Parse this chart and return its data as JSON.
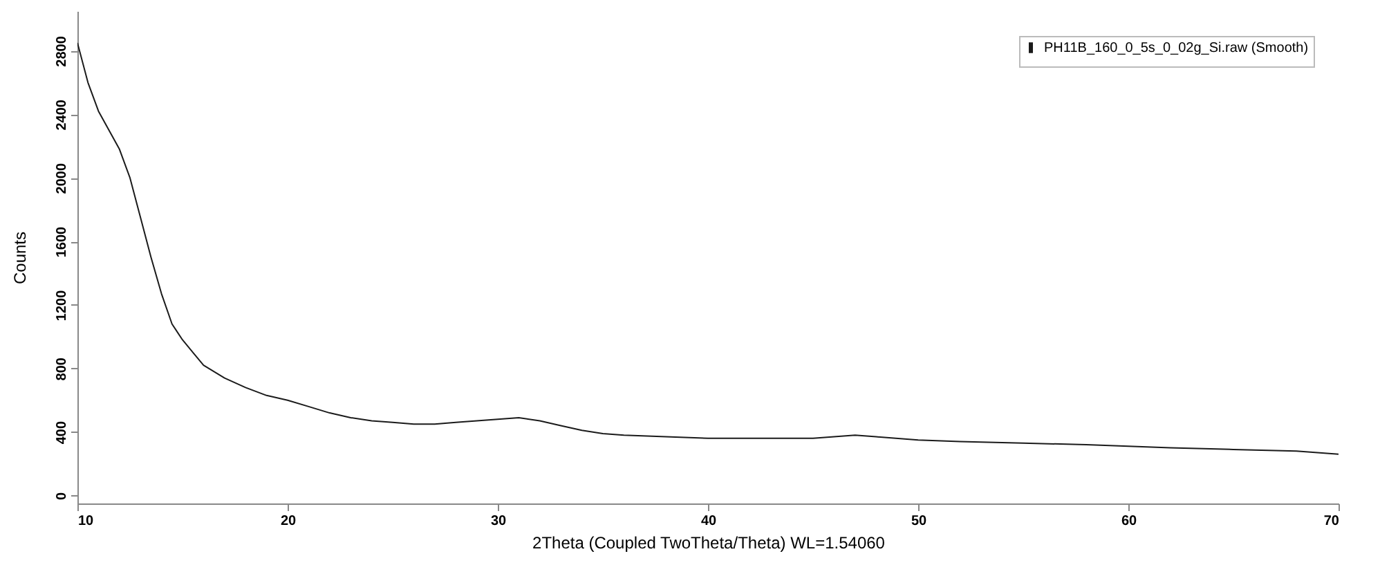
{
  "chart_data": {
    "type": "line",
    "xlabel": "2Theta (Coupled TwoTheta/Theta) WL=1.54060",
    "ylabel": "Counts",
    "xlim": [
      10,
      70
    ],
    "xticks": [
      10,
      20,
      30,
      40,
      50,
      60,
      70
    ],
    "ylim": [
      -50,
      3050
    ],
    "yticks": [
      0,
      400,
      800,
      1200,
      1600,
      2000,
      2400,
      2800
    ],
    "grid": false,
    "legend": "top right",
    "line_style": "solid",
    "marker": "none",
    "series": [
      {
        "name": "PH11B_160_0_5s_0_02g_Si.raw (Smooth)",
        "color": "#1a1a1a",
        "x": [
          10,
          10.5,
          11,
          11.5,
          12,
          12.5,
          13,
          13.5,
          14,
          14.5,
          15,
          15.5,
          16,
          17,
          18,
          19,
          20,
          21,
          22,
          23,
          24,
          25,
          26,
          27,
          28,
          29,
          30,
          31,
          32,
          33,
          34,
          35,
          36,
          38,
          40,
          42,
          44,
          45,
          47,
          48,
          50,
          52,
          55,
          58,
          60,
          62,
          65,
          68,
          70
        ],
        "values": [
          2850,
          2600,
          2420,
          2300,
          2180,
          2000,
          1750,
          1500,
          1270,
          1080,
          980,
          900,
          820,
          740,
          680,
          630,
          600,
          560,
          520,
          490,
          470,
          460,
          450,
          450,
          460,
          470,
          480,
          490,
          470,
          440,
          410,
          390,
          380,
          370,
          360,
          360,
          360,
          360,
          380,
          370,
          350,
          340,
          330,
          320,
          310,
          300,
          290,
          280,
          260
        ]
      }
    ]
  }
}
